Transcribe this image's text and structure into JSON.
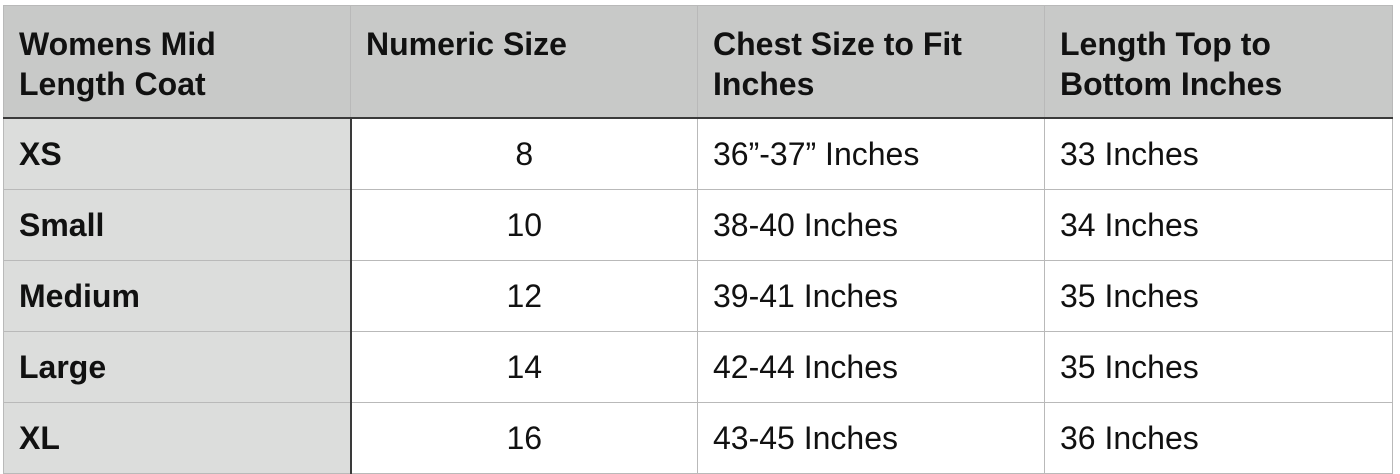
{
  "table": {
    "headers": [
      "Womens Mid Length Coat",
      "Numeric Size",
      "Chest Size to Fit Inches",
      "Length Top to Bottom Inches"
    ],
    "rows": [
      [
        "XS",
        "8",
        "36”-37” Inches",
        "33 Inches"
      ],
      [
        "Small",
        "10",
        "38-40 Inches",
        "34 Inches"
      ],
      [
        "Medium",
        "12",
        "39-41 Inches",
        "35 Inches"
      ],
      [
        "Large",
        "14",
        "42-44 Inches",
        "35 Inches"
      ],
      [
        "XL",
        "16",
        "43-45 Inches",
        "36 Inches"
      ]
    ]
  }
}
